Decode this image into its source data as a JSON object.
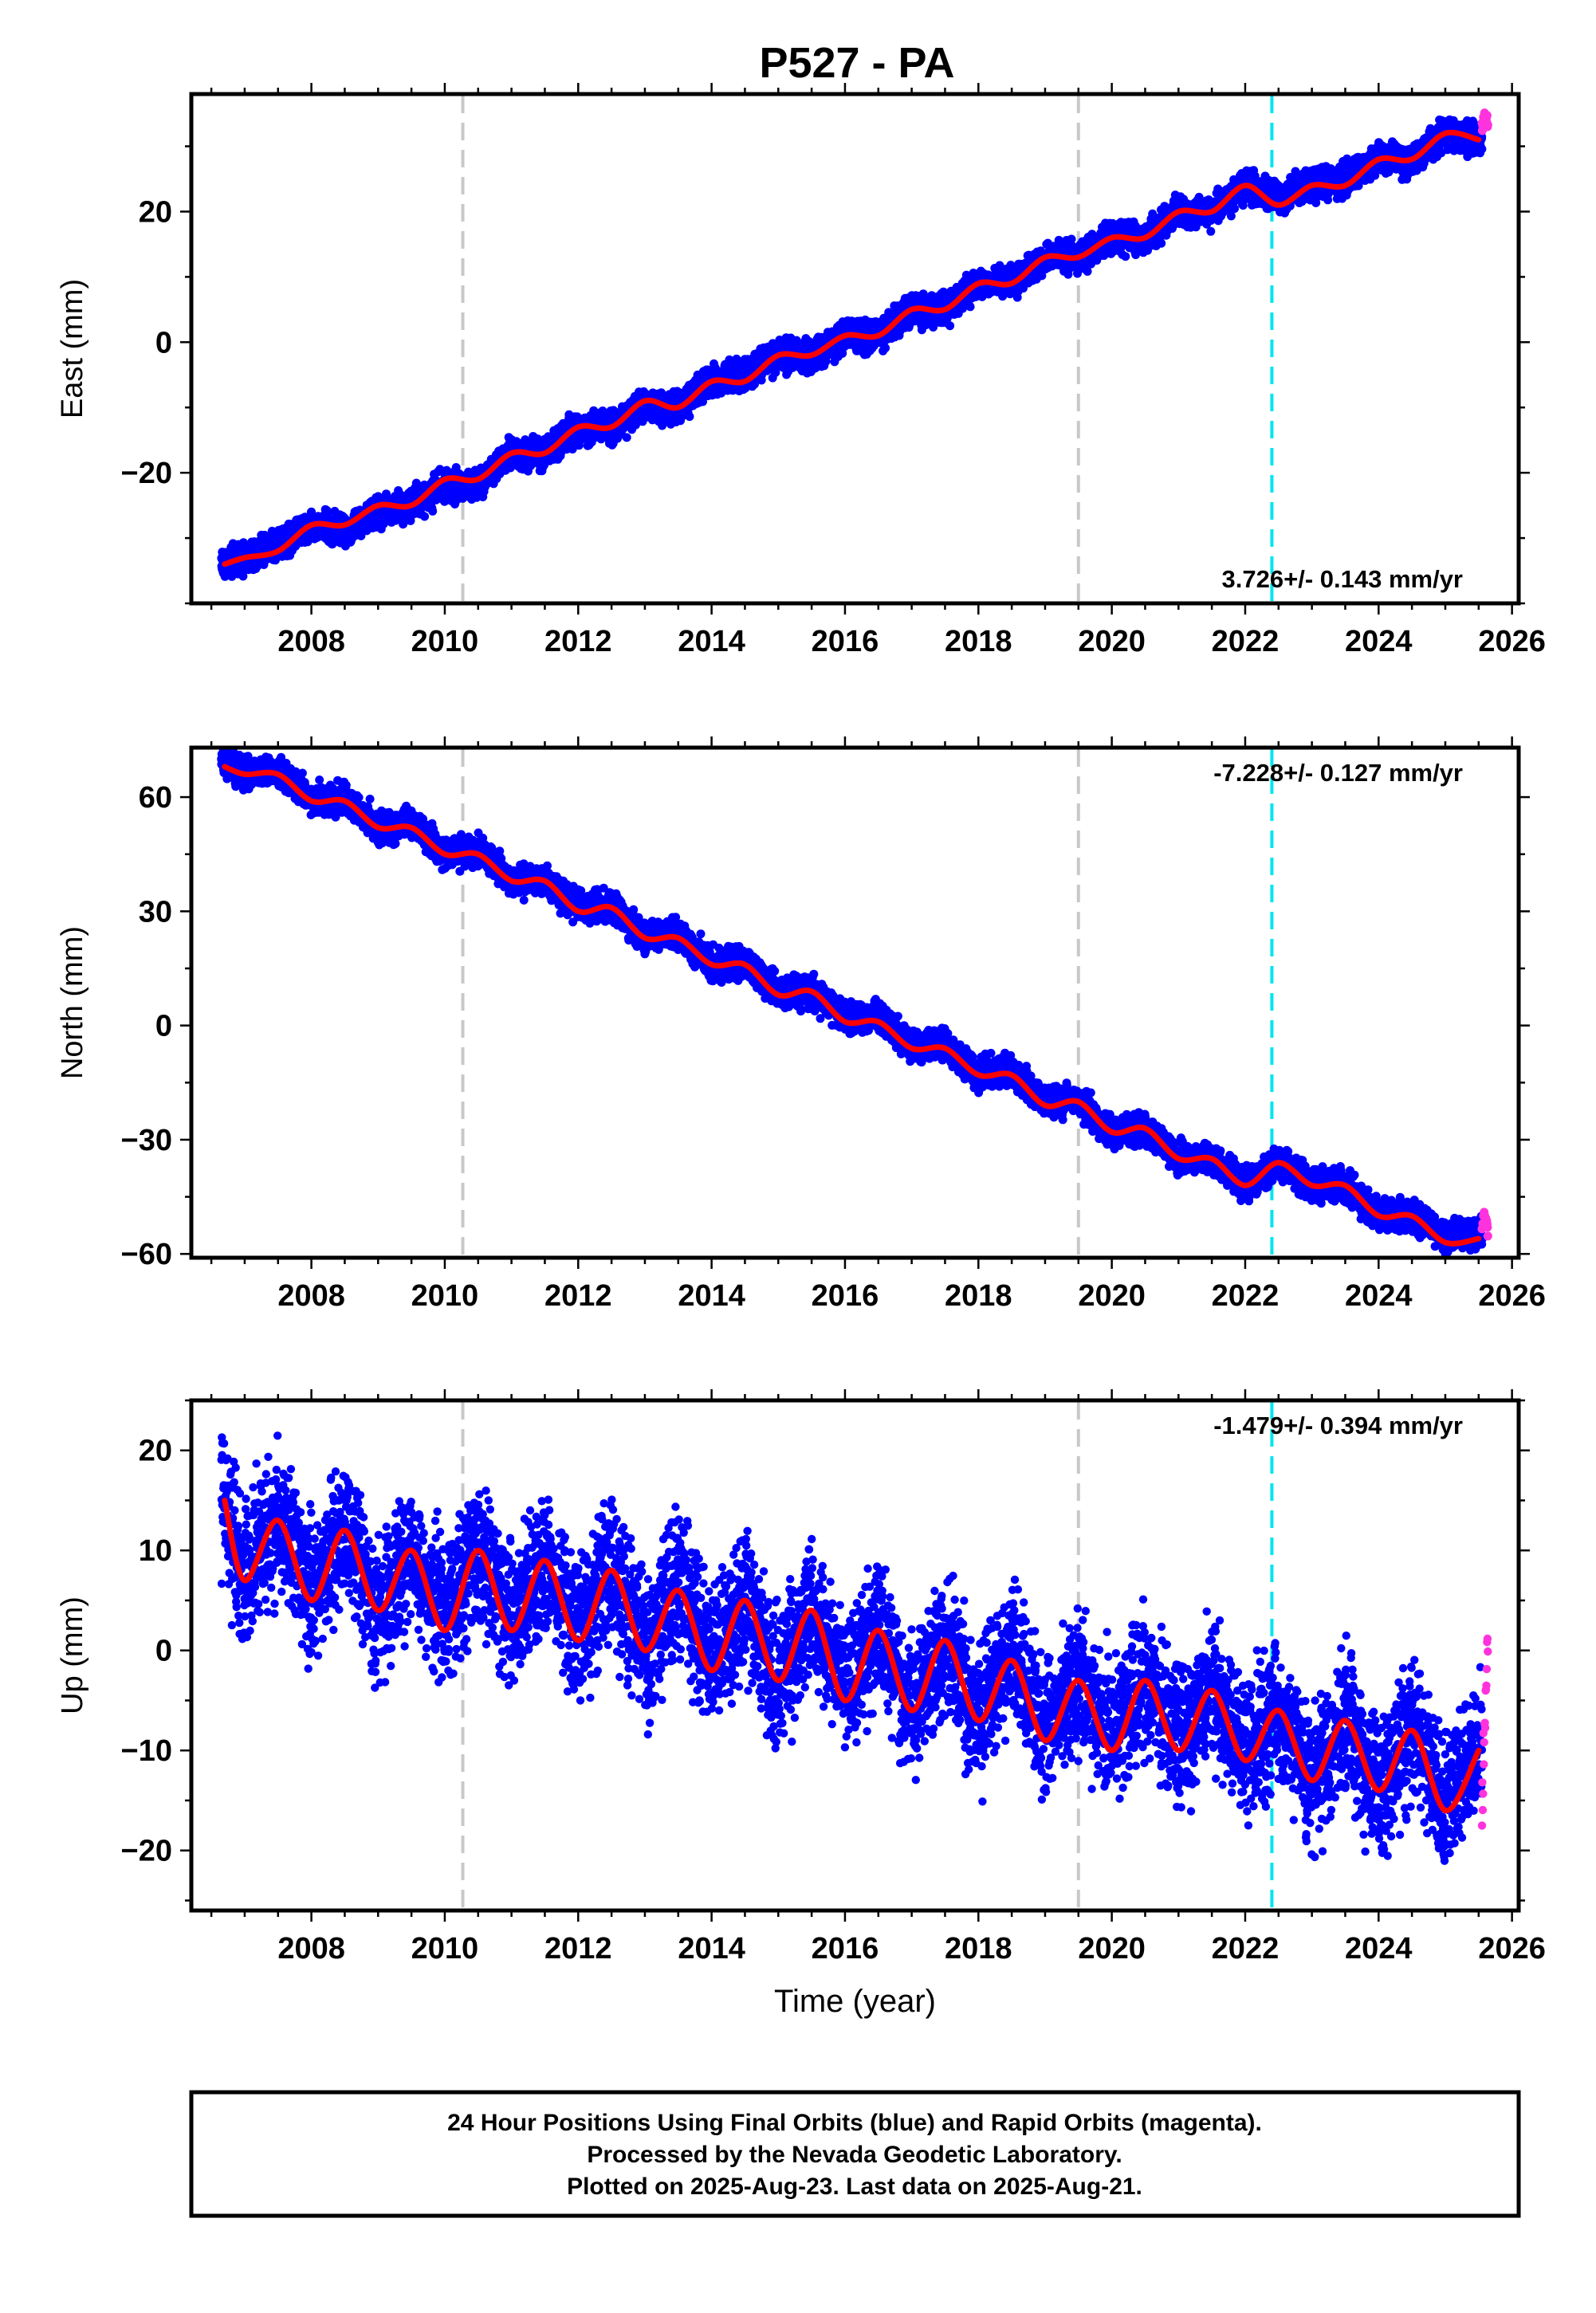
{
  "title": "P527 - PA",
  "footer": {
    "line1": "24 Hour Positions Using Final Orbits (blue) and Rapid Orbits (magenta).",
    "line2": "Processed by the Nevada Geodetic Laboratory.",
    "line3": "Plotted on 2025-Aug-23. Last data on 2025-Aug-21."
  },
  "colors": {
    "final_orbits": "#0000ff",
    "rapid_orbits": "#ff33dd",
    "model_fit": "#ff0000",
    "equipment_change": "#c8c8c8",
    "earthquake": "#00e5ee"
  },
  "chart_data": [
    {
      "type": "scatter",
      "ylabel": "East (mm)",
      "xlabel": "",
      "xlim": [
        2006.2,
        2026.1
      ],
      "ylim": [
        -40,
        38
      ],
      "xticks": [
        2008,
        2010,
        2012,
        2014,
        2016,
        2018,
        2020,
        2022,
        2024,
        2026
      ],
      "yticks": [
        -20,
        0,
        20
      ],
      "rate_label": "3.726+/- 0.143 mm/yr",
      "rate_position": "bottom-right",
      "time_span": [
        2006.65,
        2025.64
      ],
      "rapid_start": 2025.55,
      "equipment_change_epochs": [
        2010.27,
        2019.5
      ],
      "earthquake_epochs": [
        2022.4
      ],
      "series": [
        {
          "name": "Final Orbits (blue)",
          "style": "points",
          "x": [
            2006.7,
            2007.0,
            2007.5,
            2008.0,
            2008.5,
            2009.0,
            2009.5,
            2010.0,
            2010.5,
            2011.0,
            2011.5,
            2012.0,
            2012.5,
            2013.0,
            2013.5,
            2014.0,
            2014.5,
            2015.0,
            2015.5,
            2016.0,
            2016.5,
            2017.0,
            2017.5,
            2018.0,
            2018.5,
            2019.0,
            2019.5,
            2020.0,
            2020.5,
            2021.0,
            2021.5,
            2022.0,
            2022.5,
            2023.0,
            2023.5,
            2024.0,
            2024.5,
            2025.0,
            2025.5
          ],
          "y": [
            -34,
            -33,
            -31,
            -28,
            -29,
            -26,
            -25,
            -22,
            -22,
            -17,
            -17,
            -13,
            -13,
            -10,
            -10,
            -6,
            -5,
            -2,
            -2,
            1,
            1,
            5,
            5,
            9,
            9,
            13,
            13,
            16,
            16,
            20,
            20,
            24,
            22,
            24,
            25,
            28,
            28,
            32,
            31
          ]
        },
        {
          "name": "Rapid Orbits (magenta)",
          "style": "points",
          "x": [
            2025.56,
            2025.59,
            2025.62
          ],
          "y": [
            33,
            35,
            34
          ]
        },
        {
          "name": "Model fit",
          "style": "line",
          "x": [
            2006.7,
            2007.0,
            2007.5,
            2008.0,
            2008.5,
            2009.0,
            2009.5,
            2010.0,
            2010.5,
            2011.0,
            2011.5,
            2012.0,
            2012.5,
            2013.0,
            2013.5,
            2014.0,
            2014.5,
            2015.0,
            2015.5,
            2016.0,
            2016.5,
            2017.0,
            2017.5,
            2018.0,
            2018.5,
            2019.0,
            2019.5,
            2020.0,
            2020.5,
            2021.0,
            2021.5,
            2022.0,
            2022.5,
            2023.0,
            2023.5,
            2024.0,
            2024.5,
            2025.0,
            2025.5
          ],
          "y": [
            -34,
            -33,
            -32,
            -28,
            -28,
            -25,
            -25,
            -21,
            -21,
            -17,
            -17,
            -13,
            -13,
            -9,
            -10,
            -6,
            -6,
            -2,
            -2,
            1,
            1,
            5,
            5,
            9,
            9,
            13,
            13,
            16,
            16,
            20,
            20,
            24,
            21,
            24,
            24,
            28,
            28,
            32,
            31
          ]
        }
      ]
    },
    {
      "type": "scatter",
      "ylabel": "North (mm)",
      "xlabel": "",
      "xlim": [
        2006.2,
        2026.1
      ],
      "ylim": [
        -61,
        73
      ],
      "xticks": [
        2008,
        2010,
        2012,
        2014,
        2016,
        2018,
        2020,
        2022,
        2024,
        2026
      ],
      "yticks": [
        -60,
        -30,
        0,
        30,
        60
      ],
      "rate_label": "-7.228+/- 0.127 mm/yr",
      "rate_position": "top-right",
      "time_span": [
        2006.65,
        2025.64
      ],
      "rapid_start": 2025.55,
      "equipment_change_epochs": [
        2010.27,
        2019.5
      ],
      "earthquake_epochs": [
        2022.4
      ],
      "series": [
        {
          "name": "Final Orbits (blue)",
          "style": "points",
          "x": [
            2006.7,
            2007.0,
            2007.5,
            2008.0,
            2008.5,
            2009.0,
            2009.5,
            2010.0,
            2010.5,
            2011.0,
            2011.5,
            2012.0,
            2012.5,
            2013.0,
            2013.5,
            2014.0,
            2014.5,
            2015.0,
            2015.5,
            2016.0,
            2016.5,
            2017.0,
            2017.5,
            2018.0,
            2018.5,
            2019.0,
            2019.5,
            2020.0,
            2020.5,
            2021.0,
            2021.5,
            2022.0,
            2022.5,
            2023.0,
            2023.5,
            2024.0,
            2024.5,
            2025.0,
            2025.5
          ],
          "y": [
            69,
            66,
            67,
            59,
            60,
            52,
            53,
            45,
            46,
            38,
            38,
            31,
            31,
            23,
            24,
            16,
            16,
            9,
            9,
            2,
            2,
            -5,
            -5,
            -13,
            -12,
            -20,
            -20,
            -28,
            -27,
            -35,
            -35,
            -42,
            -36,
            -42,
            -42,
            -50,
            -50,
            -55,
            -55
          ]
        },
        {
          "name": "Rapid Orbits (magenta)",
          "style": "points",
          "x": [
            2025.56,
            2025.59,
            2025.62
          ],
          "y": [
            -52,
            -50,
            -53
          ]
        },
        {
          "name": "Model fit",
          "style": "line",
          "x": [
            2006.7,
            2007.0,
            2007.5,
            2008.0,
            2008.5,
            2009.0,
            2009.5,
            2010.0,
            2010.5,
            2011.0,
            2011.5,
            2012.0,
            2012.5,
            2013.0,
            2013.5,
            2014.0,
            2014.5,
            2015.0,
            2015.5,
            2016.0,
            2016.5,
            2017.0,
            2017.5,
            2018.0,
            2018.5,
            2019.0,
            2019.5,
            2020.0,
            2020.5,
            2021.0,
            2021.5,
            2022.0,
            2022.5,
            2023.0,
            2023.5,
            2024.0,
            2024.5,
            2025.0,
            2025.5
          ],
          "y": [
            68,
            66,
            66,
            59,
            59,
            52,
            52,
            45,
            45,
            38,
            38,
            30,
            31,
            23,
            23,
            16,
            16,
            8,
            9,
            1,
            1,
            -6,
            -6,
            -13,
            -13,
            -21,
            -20,
            -28,
            -27,
            -35,
            -35,
            -42,
            -36,
            -42,
            -42,
            -50,
            -50,
            -57,
            -56
          ]
        }
      ]
    },
    {
      "type": "scatter",
      "ylabel": "Up (mm)",
      "xlabel": "Time (year)",
      "xlim": [
        2006.2,
        2026.1
      ],
      "ylim": [
        -26,
        25
      ],
      "xticks": [
        2008,
        2010,
        2012,
        2014,
        2016,
        2018,
        2020,
        2022,
        2024,
        2026
      ],
      "yticks": [
        -20,
        -10,
        0,
        10,
        20
      ],
      "rate_label": "-1.479+/- 0.394 mm/yr",
      "rate_position": "top-right",
      "time_span": [
        2006.65,
        2025.64
      ],
      "rapid_start": 2025.55,
      "equipment_change_epochs": [
        2010.27,
        2019.5
      ],
      "earthquake_epochs": [
        2022.4
      ],
      "series": [
        {
          "name": "Final Orbits (blue)",
          "style": "points",
          "x": [
            2006.7,
            2007.0,
            2007.5,
            2008.0,
            2008.5,
            2009.0,
            2009.5,
            2010.0,
            2010.5,
            2011.0,
            2011.5,
            2012.0,
            2012.5,
            2013.0,
            2013.5,
            2014.0,
            2014.5,
            2015.0,
            2015.5,
            2016.0,
            2016.5,
            2017.0,
            2017.5,
            2018.0,
            2018.5,
            2019.0,
            2019.5,
            2020.0,
            2020.5,
            2021.0,
            2021.5,
            2022.0,
            2022.5,
            2023.0,
            2023.5,
            2024.0,
            2024.5,
            2025.0,
            2025.5
          ],
          "y": [
            15,
            7,
            13,
            6,
            12,
            4,
            10,
            3,
            10,
            3,
            9,
            2,
            8,
            0,
            7,
            -1,
            5,
            -3,
            4,
            -4,
            2,
            -6,
            1,
            -7,
            0,
            -8,
            -3,
            -8,
            -3,
            -9,
            -4,
            -10,
            -6,
            -13,
            -7,
            -14,
            -8,
            -15,
            -10
          ]
        },
        {
          "name": "Rapid Orbits (magenta)",
          "style": "points",
          "x": [
            2025.56,
            2025.59,
            2025.62,
            2025.64
          ],
          "y": [
            -16,
            -8,
            -2,
            1
          ]
        },
        {
          "name": "Model fit",
          "style": "line",
          "x": [
            2006.7,
            2007.0,
            2007.5,
            2008.0,
            2008.5,
            2009.0,
            2009.5,
            2010.0,
            2010.5,
            2011.0,
            2011.5,
            2012.0,
            2012.5,
            2013.0,
            2013.5,
            2014.0,
            2014.5,
            2015.0,
            2015.5,
            2016.0,
            2016.5,
            2017.0,
            2017.5,
            2018.0,
            2018.5,
            2019.0,
            2019.5,
            2020.0,
            2020.5,
            2021.0,
            2021.5,
            2022.0,
            2022.5,
            2023.0,
            2023.5,
            2024.0,
            2024.5,
            2025.0,
            2025.5
          ],
          "y": [
            15,
            7,
            13,
            5,
            12,
            4,
            10,
            2,
            10,
            2,
            9,
            1,
            8,
            0,
            6,
            -2,
            5,
            -3,
            4,
            -5,
            2,
            -6,
            1,
            -7,
            -1,
            -9,
            -3,
            -10,
            -3,
            -10,
            -4,
            -11,
            -6,
            -13,
            -7,
            -14,
            -8,
            -16,
            -10
          ]
        }
      ]
    }
  ]
}
